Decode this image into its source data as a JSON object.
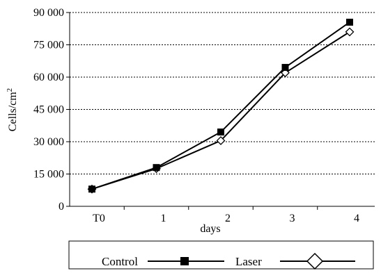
{
  "chart_data": {
    "type": "line",
    "categories": [
      "T0",
      "1",
      "2",
      "3",
      "4"
    ],
    "series": [
      {
        "name": "Control",
        "values": [
          8000,
          18000,
          34500,
          64500,
          85500
        ],
        "color": "#000000",
        "marker": "filled-square"
      },
      {
        "name": "Laser",
        "values": [
          8000,
          17500,
          30500,
          62000,
          81000
        ],
        "color": "#000000",
        "marker": "open-diamond"
      }
    ],
    "xlabel": "days",
    "ylabel_main": "Cells/cm",
    "ylabel_sup": "2",
    "ylim": [
      0,
      90000
    ],
    "yticks": [
      0,
      15000,
      30000,
      45000,
      60000,
      75000,
      90000
    ],
    "ytick_labels": [
      "0",
      "15 000",
      "30 000",
      "45 000",
      "60 000",
      "75 000",
      "90 000"
    ],
    "grid": "horizontal-dotted",
    "legend_position": "bottom"
  }
}
